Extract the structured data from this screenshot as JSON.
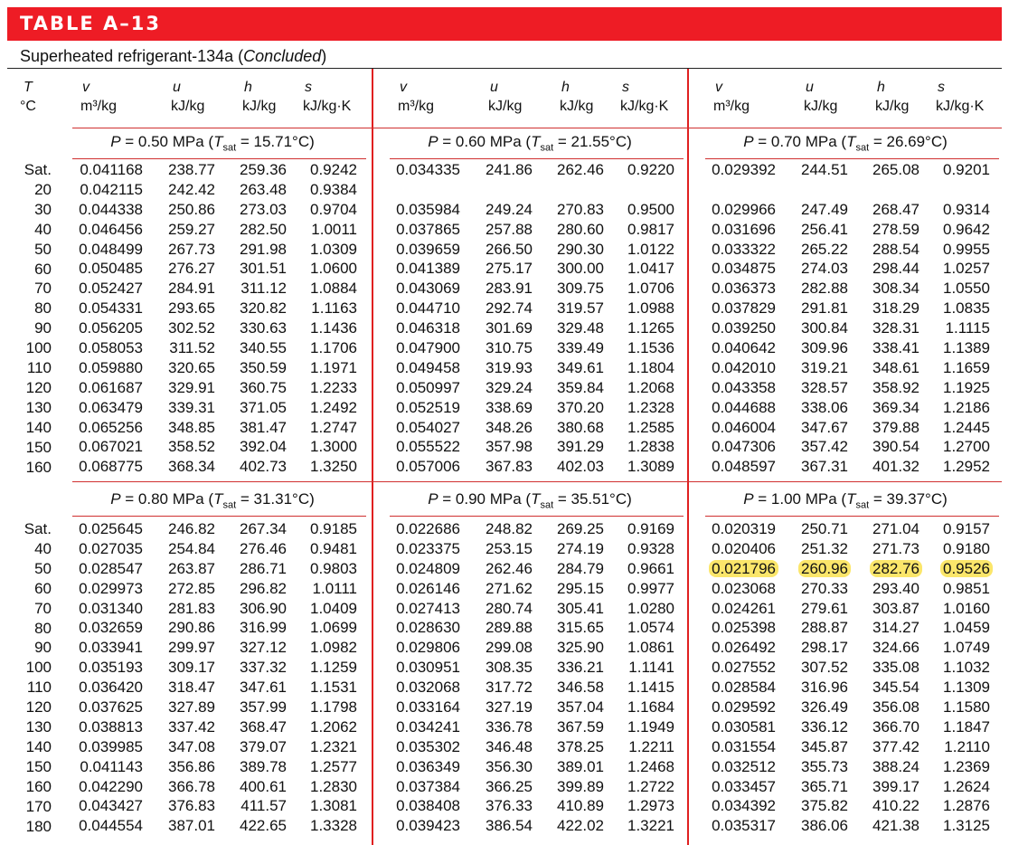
{
  "title": "TABLE A–13",
  "subtitle": "Superheated refrigerant-134a",
  "subtitle_paren": "Concluded",
  "header": {
    "t_sym": "T",
    "t_unit": "°C",
    "v_sym": "v",
    "v_unit": "m³/kg",
    "u_sym": "u",
    "u_unit": "kJ/kg",
    "h_sym": "h",
    "h_unit": "kJ/kg",
    "s_sym": "s",
    "s_unit": "kJ/kg·K"
  },
  "colors": {
    "banner": "#ee1c25",
    "rule": "#d03030",
    "highlight": "#fbe66a"
  },
  "top": {
    "temps": [
      "Sat.",
      "20",
      "30",
      "40",
      "50",
      "60",
      "70",
      "80",
      "90",
      "100",
      "110",
      "120",
      "130",
      "140",
      "150",
      "160"
    ],
    "blocks": [
      {
        "pressure": "P = 0.50 MPa (T",
        "tsat": "sat",
        "tval": " = 15.71°C)",
        "rows": [
          [
            "0.041168",
            "238.77",
            "259.36",
            "0.9242"
          ],
          [
            "0.042115",
            "242.42",
            "263.48",
            "0.9384"
          ],
          [
            "0.044338",
            "250.86",
            "273.03",
            "0.9704"
          ],
          [
            "0.046456",
            "259.27",
            "282.50",
            "1.0011"
          ],
          [
            "0.048499",
            "267.73",
            "291.98",
            "1.0309"
          ],
          [
            "0.050485",
            "276.27",
            "301.51",
            "1.0600"
          ],
          [
            "0.052427",
            "284.91",
            "311.12",
            "1.0884"
          ],
          [
            "0.054331",
            "293.65",
            "320.82",
            "1.1163"
          ],
          [
            "0.056205",
            "302.52",
            "330.63",
            "1.1436"
          ],
          [
            "0.058053",
            "311.52",
            "340.55",
            "1.1706"
          ],
          [
            "0.059880",
            "320.65",
            "350.59",
            "1.1971"
          ],
          [
            "0.061687",
            "329.91",
            "360.75",
            "1.2233"
          ],
          [
            "0.063479",
            "339.31",
            "371.05",
            "1.2492"
          ],
          [
            "0.065256",
            "348.85",
            "381.47",
            "1.2747"
          ],
          [
            "0.067021",
            "358.52",
            "392.04",
            "1.3000"
          ],
          [
            "0.068775",
            "368.34",
            "402.73",
            "1.3250"
          ]
        ]
      },
      {
        "pressure": "P = 0.60 MPa (T",
        "tsat": "sat",
        "tval": " = 21.55°C)",
        "rows": [
          [
            "0.034335",
            "241.86",
            "262.46",
            "0.9220"
          ],
          [
            "",
            "",
            "",
            ""
          ],
          [
            "0.035984",
            "249.24",
            "270.83",
            "0.9500"
          ],
          [
            "0.037865",
            "257.88",
            "280.60",
            "0.9817"
          ],
          [
            "0.039659",
            "266.50",
            "290.30",
            "1.0122"
          ],
          [
            "0.041389",
            "275.17",
            "300.00",
            "1.0417"
          ],
          [
            "0.043069",
            "283.91",
            "309.75",
            "1.0706"
          ],
          [
            "0.044710",
            "292.74",
            "319.57",
            "1.0988"
          ],
          [
            "0.046318",
            "301.69",
            "329.48",
            "1.1265"
          ],
          [
            "0.047900",
            "310.75",
            "339.49",
            "1.1536"
          ],
          [
            "0.049458",
            "319.93",
            "349.61",
            "1.1804"
          ],
          [
            "0.050997",
            "329.24",
            "359.84",
            "1.2068"
          ],
          [
            "0.052519",
            "338.69",
            "370.20",
            "1.2328"
          ],
          [
            "0.054027",
            "348.26",
            "380.68",
            "1.2585"
          ],
          [
            "0.055522",
            "357.98",
            "391.29",
            "1.2838"
          ],
          [
            "0.057006",
            "367.83",
            "402.03",
            "1.3089"
          ]
        ]
      },
      {
        "pressure": "P = 0.70 MPa (T",
        "tsat": "sat",
        "tval": " = 26.69°C)",
        "rows": [
          [
            "0.029392",
            "244.51",
            "265.08",
            "0.9201"
          ],
          [
            "",
            "",
            "",
            ""
          ],
          [
            "0.029966",
            "247.49",
            "268.47",
            "0.9314"
          ],
          [
            "0.031696",
            "256.41",
            "278.59",
            "0.9642"
          ],
          [
            "0.033322",
            "265.22",
            "288.54",
            "0.9955"
          ],
          [
            "0.034875",
            "274.03",
            "298.44",
            "1.0257"
          ],
          [
            "0.036373",
            "282.88",
            "308.34",
            "1.0550"
          ],
          [
            "0.037829",
            "291.81",
            "318.29",
            "1.0835"
          ],
          [
            "0.039250",
            "300.84",
            "328.31",
            "1.1115"
          ],
          [
            "0.040642",
            "309.96",
            "338.41",
            "1.1389"
          ],
          [
            "0.042010",
            "319.21",
            "348.61",
            "1.1659"
          ],
          [
            "0.043358",
            "328.57",
            "358.92",
            "1.1925"
          ],
          [
            "0.044688",
            "338.06",
            "369.34",
            "1.2186"
          ],
          [
            "0.046004",
            "347.67",
            "379.88",
            "1.2445"
          ],
          [
            "0.047306",
            "357.42",
            "390.54",
            "1.2700"
          ],
          [
            "0.048597",
            "367.31",
            "401.32",
            "1.2952"
          ]
        ]
      }
    ]
  },
  "bottom": {
    "temps": [
      "Sat.",
      "40",
      "50",
      "60",
      "70",
      "80",
      "90",
      "100",
      "110",
      "120",
      "130",
      "140",
      "150",
      "160",
      "170",
      "180"
    ],
    "blocks": [
      {
        "pressure": "P = 0.80 MPa (T",
        "tsat": "sat",
        "tval": " = 31.31°C)",
        "rows": [
          [
            "0.025645",
            "246.82",
            "267.34",
            "0.9185"
          ],
          [
            "0.027035",
            "254.84",
            "276.46",
            "0.9481"
          ],
          [
            "0.028547",
            "263.87",
            "286.71",
            "0.9803"
          ],
          [
            "0.029973",
            "272.85",
            "296.82",
            "1.0111"
          ],
          [
            "0.031340",
            "281.83",
            "306.90",
            "1.0409"
          ],
          [
            "0.032659",
            "290.86",
            "316.99",
            "1.0699"
          ],
          [
            "0.033941",
            "299.97",
            "327.12",
            "1.0982"
          ],
          [
            "0.035193",
            "309.17",
            "337.32",
            "1.1259"
          ],
          [
            "0.036420",
            "318.47",
            "347.61",
            "1.1531"
          ],
          [
            "0.037625",
            "327.89",
            "357.99",
            "1.1798"
          ],
          [
            "0.038813",
            "337.42",
            "368.47",
            "1.2062"
          ],
          [
            "0.039985",
            "347.08",
            "379.07",
            "1.2321"
          ],
          [
            "0.041143",
            "356.86",
            "389.78",
            "1.2577"
          ],
          [
            "0.042290",
            "366.78",
            "400.61",
            "1.2830"
          ],
          [
            "0.043427",
            "376.83",
            "411.57",
            "1.3081"
          ],
          [
            "0.044554",
            "387.01",
            "422.65",
            "1.3328"
          ]
        ]
      },
      {
        "pressure": "P = 0.90 MPa (T",
        "tsat": "sat",
        "tval": " = 35.51°C)",
        "rows": [
          [
            "0.022686",
            "248.82",
            "269.25",
            "0.9169"
          ],
          [
            "0.023375",
            "253.15",
            "274.19",
            "0.9328"
          ],
          [
            "0.024809",
            "262.46",
            "284.79",
            "0.9661"
          ],
          [
            "0.026146",
            "271.62",
            "295.15",
            "0.9977"
          ],
          [
            "0.027413",
            "280.74",
            "305.41",
            "1.0280"
          ],
          [
            "0.028630",
            "289.88",
            "315.65",
            "1.0574"
          ],
          [
            "0.029806",
            "299.08",
            "325.90",
            "1.0861"
          ],
          [
            "0.030951",
            "308.35",
            "336.21",
            "1.1141"
          ],
          [
            "0.032068",
            "317.72",
            "346.58",
            "1.1415"
          ],
          [
            "0.033164",
            "327.19",
            "357.04",
            "1.1684"
          ],
          [
            "0.034241",
            "336.78",
            "367.59",
            "1.1949"
          ],
          [
            "0.035302",
            "346.48",
            "378.25",
            "1.2211"
          ],
          [
            "0.036349",
            "356.30",
            "389.01",
            "1.2468"
          ],
          [
            "0.037384",
            "366.25",
            "399.89",
            "1.2722"
          ],
          [
            "0.038408",
            "376.33",
            "410.89",
            "1.2973"
          ],
          [
            "0.039423",
            "386.54",
            "422.02",
            "1.3221"
          ]
        ]
      },
      {
        "pressure": "P = 1.00 MPa (T",
        "tsat": "sat",
        "tval": " = 39.37°C)",
        "highlight_row": 2,
        "rows": [
          [
            "0.020319",
            "250.71",
            "271.04",
            "0.9157"
          ],
          [
            "0.020406",
            "251.32",
            "271.73",
            "0.9180"
          ],
          [
            "0.021796",
            "260.96",
            "282.76",
            "0.9526"
          ],
          [
            "0.023068",
            "270.33",
            "293.40",
            "0.9851"
          ],
          [
            "0.024261",
            "279.61",
            "303.87",
            "1.0160"
          ],
          [
            "0.025398",
            "288.87",
            "314.27",
            "1.0459"
          ],
          [
            "0.026492",
            "298.17",
            "324.66",
            "1.0749"
          ],
          [
            "0.027552",
            "307.52",
            "335.08",
            "1.1032"
          ],
          [
            "0.028584",
            "316.96",
            "345.54",
            "1.1309"
          ],
          [
            "0.029592",
            "326.49",
            "356.08",
            "1.1580"
          ],
          [
            "0.030581",
            "336.12",
            "366.70",
            "1.1847"
          ],
          [
            "0.031554",
            "345.87",
            "377.42",
            "1.2110"
          ],
          [
            "0.032512",
            "355.73",
            "388.24",
            "1.2369"
          ],
          [
            "0.033457",
            "365.71",
            "399.17",
            "1.2624"
          ],
          [
            "0.034392",
            "375.82",
            "410.22",
            "1.2876"
          ],
          [
            "0.035317",
            "386.06",
            "421.38",
            "1.3125"
          ]
        ]
      }
    ]
  }
}
